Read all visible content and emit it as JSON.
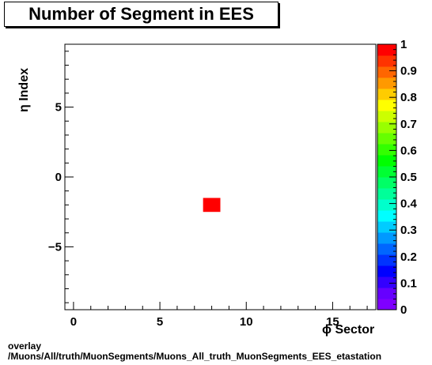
{
  "title": "Number of Segment in EES",
  "footer": {
    "line1": "overlay",
    "line2": "/Muons/All/truth/MuonSegments/Muons_All_truth_MuonSegments_EES_etastation"
  },
  "chart_data": {
    "type": "heatmap",
    "xlabel": "ϕ Sector",
    "ylabel": "η Index",
    "xlim": [
      -0.5,
      17.5
    ],
    "ylim": [
      -9.5,
      9.5
    ],
    "x_ticks": [
      0,
      5,
      10,
      15
    ],
    "x_tick_labels": [
      "0",
      "5",
      "10",
      "15"
    ],
    "y_ticks": [
      -5,
      0,
      5
    ],
    "y_tick_labels": [
      "−5",
      "0",
      "5"
    ],
    "z_range": [
      0,
      1
    ],
    "z_ticks": [
      0,
      0.1,
      0.2,
      0.3,
      0.4,
      0.5,
      0.6,
      0.7,
      0.8,
      0.9,
      1
    ],
    "z_tick_labels": [
      "0",
      "0.1",
      "0.2",
      "0.3",
      "0.4",
      "0.5",
      "0.6",
      "0.7",
      "0.8",
      "0.9",
      "1"
    ],
    "cells": [
      {
        "x": 8,
        "y": -2,
        "value": 1
      }
    ],
    "palette": [
      "#7f00ff",
      "#6600ff",
      "#3300ff",
      "#0000ff",
      "#0033ff",
      "#0066ff",
      "#0099ff",
      "#00ccff",
      "#00ffff",
      "#00ffcc",
      "#00ff99",
      "#00ff66",
      "#00ff33",
      "#00ff00",
      "#33ff00",
      "#66ff00",
      "#99ff00",
      "#ccff00",
      "#ffff00",
      "#ffcc00",
      "#ff9900",
      "#ff6600",
      "#ff3300",
      "#ff0000"
    ]
  }
}
